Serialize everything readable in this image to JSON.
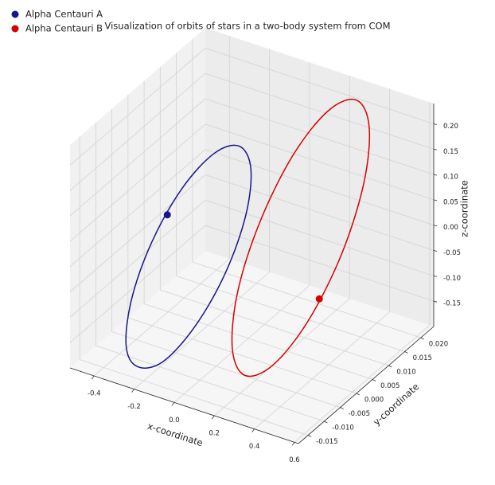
{
  "chart_data": {
    "type": "line3d",
    "title": "Visualization of orbits of stars in a two-body system from COM",
    "xlabel": "x-coordinate",
    "ylabel": "y-coordinate",
    "zlabel": "z-coordinate",
    "xlim": [
      -0.52,
      0.62
    ],
    "ylim": [
      -0.018,
      0.024
    ],
    "zlim": [
      -0.2,
      0.24
    ],
    "xticks": [
      -0.4,
      -0.2,
      {
        "value": 0,
        "label": "0.0"
      },
      0.2,
      0.4,
      0.6
    ],
    "yticks": [
      -0.015,
      {
        "value": -0.01,
        "label": "-0.010"
      },
      -0.005,
      {
        "value": 0,
        "label": "0.000"
      },
      0.005,
      {
        "value": 0.01,
        "label": "0.010"
      },
      0.015,
      {
        "value": 0.02,
        "label": "0.020"
      }
    ],
    "zticks": [
      -0.15,
      {
        "value": -0.1,
        "label": "-0.10"
      },
      -0.05,
      {
        "value": 0,
        "label": "0.00"
      },
      0.05,
      {
        "value": 0.1,
        "label": "0.10"
      },
      0.15,
      {
        "value": 0.2,
        "label": "0.20"
      }
    ],
    "grid": true,
    "legend": "upper left",
    "series": [
      {
        "name": "Alpha Centauri A",
        "color": "#16168a",
        "x": [
          -0.157,
          -0.074,
          -0.029,
          -0.035,
          -0.09,
          -0.179,
          -0.279,
          -0.362,
          -0.406,
          -0.4,
          -0.345,
          -0.256
        ],
        "y": [
          0.012,
          0.0104,
          0.006,
          0,
          -0.006,
          -0.0104,
          -0.012,
          -0.0104,
          -0.006,
          0,
          0.006,
          0.0104
        ],
        "z": [
          0.12,
          0.095,
          0.033,
          -0.049,
          -0.128,
          -0.185,
          -0.199,
          -0.178,
          -0.116,
          -0.034,
          0.046,
          0.102
        ],
        "marker": {
          "x": -0.372,
          "y": 0.003,
          "z": 0.006
        }
      },
      {
        "name": "Alpha Centauri B",
        "color": "#d60000",
        "x": [
          0.283,
          0.387,
          0.472,
          0.513,
          0.499,
          0.435,
          0.337,
          0.233,
          0.148,
          0.108,
          0.121,
          0.185
        ],
        "y": [
          0.021,
          0.01845,
          0.0115,
          0.002,
          -0.0075,
          -0.01445,
          -0.017,
          -0.01445,
          -0.0075,
          0.002,
          0.0115,
          0.01845
        ],
        "z": [
          0.219,
          0.194,
          0.132,
          0.049,
          -0.032,
          -0.089,
          -0.108,
          -0.083,
          -0.02,
          0.062,
          0.143,
          0.2
        ],
        "marker": {
          "x": 0.504,
          "y": -0.0043,
          "z": -0.005
        }
      }
    ]
  }
}
